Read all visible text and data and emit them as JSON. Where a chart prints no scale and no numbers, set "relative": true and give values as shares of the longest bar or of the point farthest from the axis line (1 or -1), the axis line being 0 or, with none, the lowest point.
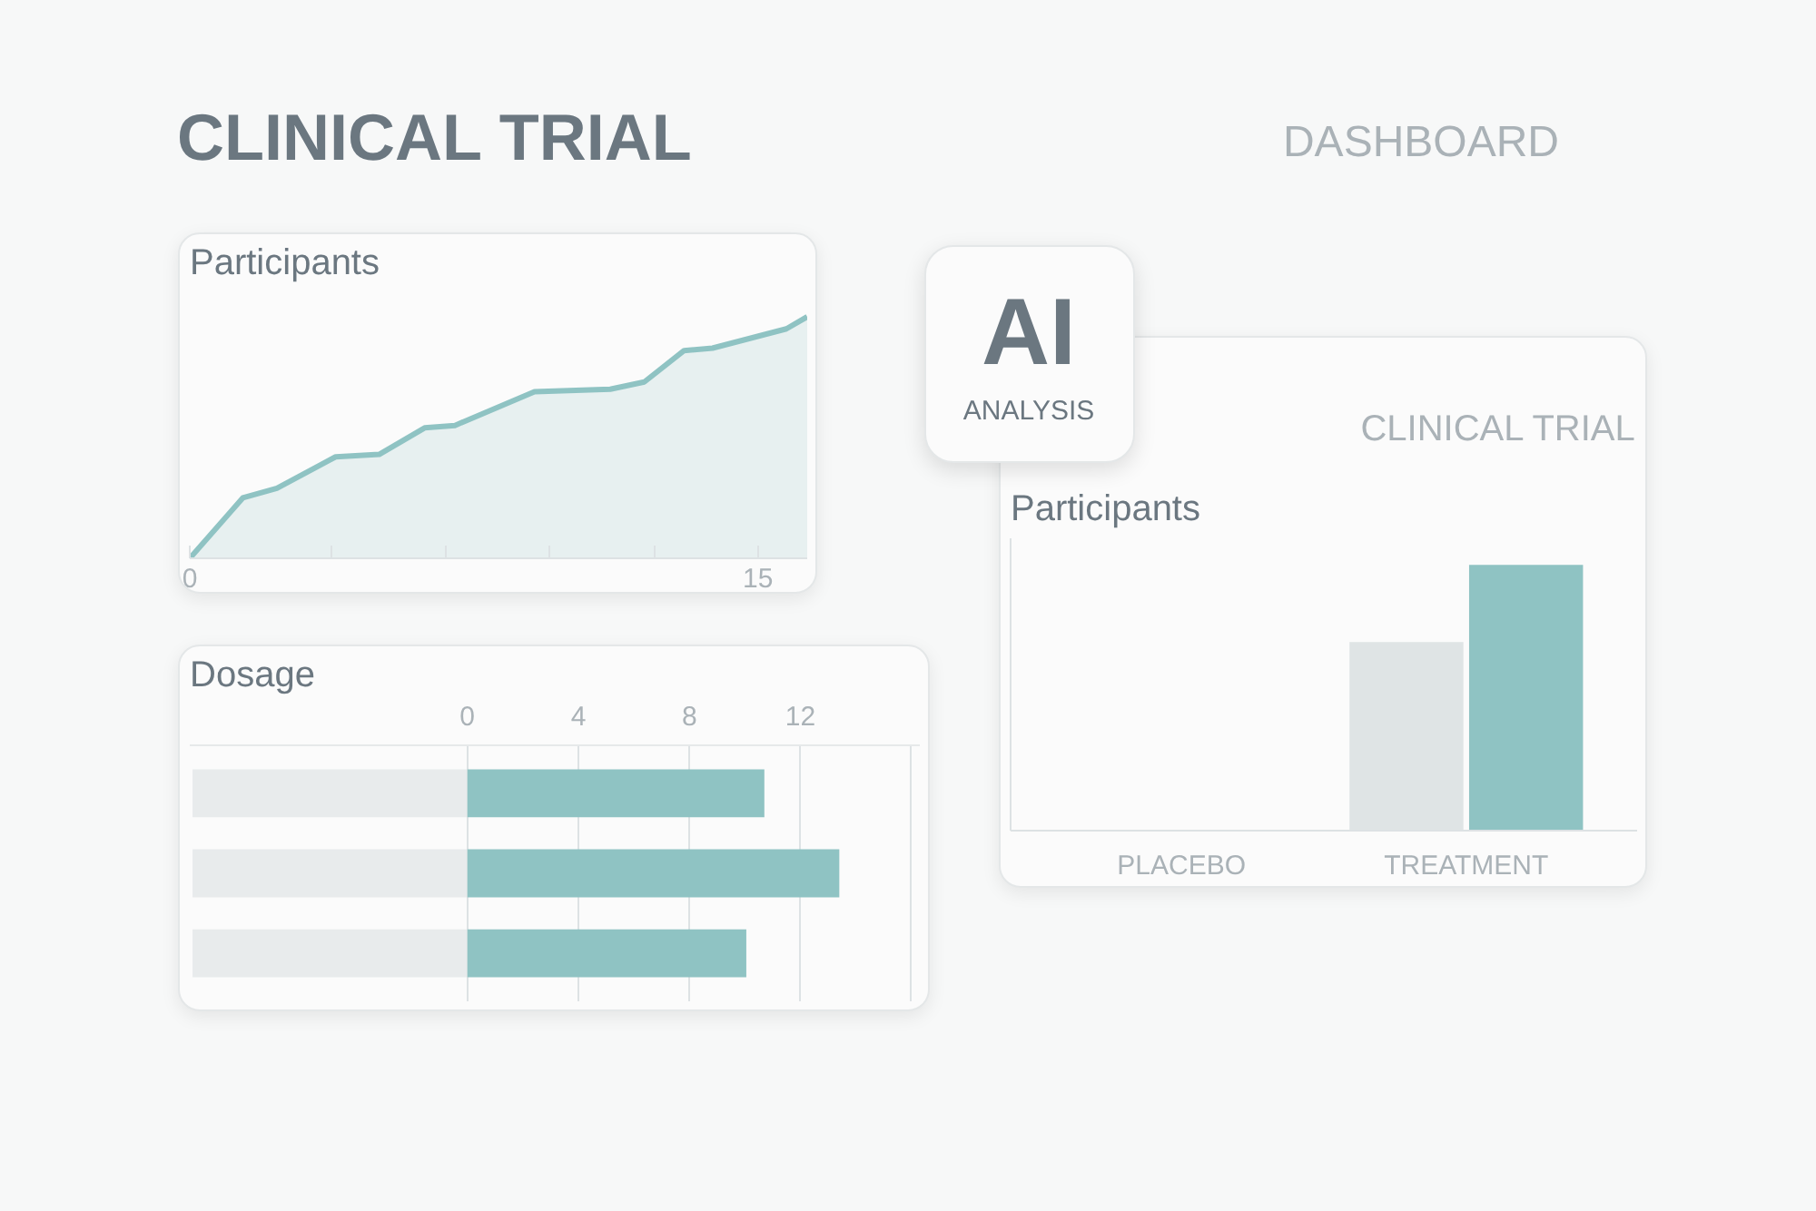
{
  "chart_data": [
    {
      "type": "other",
      "title": "CLINICAL TRIAL",
      "annotations": [
        "DASHBOARD",
        "AI",
        "ANALYSIS"
      ]
    },
    {
      "type": "area",
      "title": "Participants",
      "relative": true,
      "color": "#8fc3c3",
      "x": [
        0,
        1.4,
        2.3,
        3.85,
        5.0,
        6.2,
        7.0,
        9.1,
        11.1,
        12.0,
        13.05,
        13.8,
        15.75,
        16.3
      ],
      "values": [
        0,
        0.25,
        0.29,
        0.42,
        0.43,
        0.54,
        0.55,
        0.69,
        0.7,
        0.73,
        0.86,
        0.87,
        0.95,
        1.0
      ],
      "xlim": [
        0,
        16.3
      ],
      "xticks": [
        0,
        {
          "value": 3.75,
          "label": null
        },
        {
          "value": 6.75,
          "label": null
        },
        {
          "value": 9.5,
          "label": null
        },
        {
          "value": 12.25,
          "label": null
        },
        15
      ]
    },
    {
      "type": "bar",
      "orientation": "horizontal",
      "stacked": true,
      "title": "Dosage",
      "categories": [
        null,
        null,
        null
      ],
      "series": [
        {
          "color": "#e8ebec",
          "values": [
            -9.9,
            -9.9,
            -9.9
          ]
        },
        {
          "color": "#8fc3c3",
          "values": [
            10.7,
            13.4,
            10.05
          ]
        }
      ],
      "xlim": [
        -10,
        16.3
      ],
      "xticks": [
        0,
        4,
        8,
        12,
        {
          "value": 16,
          "label": null
        }
      ],
      "grid": "x"
    },
    {
      "type": "bar",
      "title": "CLINICAL TRIAL",
      "subtitle": "Participants",
      "relative": true,
      "categories": [
        "PLACEBO",
        "TREATMENT"
      ],
      "series": [
        {
          "color": "#dfe4e5",
          "values": [
            null,
            0.71
          ]
        },
        {
          "color": "#8fc3c3",
          "values": [
            null,
            1
          ]
        }
      ]
    }
  ]
}
